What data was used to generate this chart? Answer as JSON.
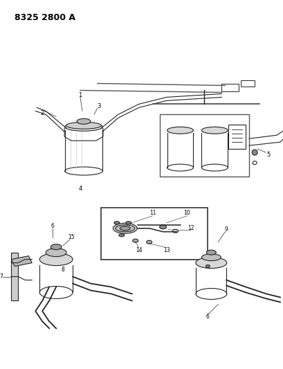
{
  "title": "8325 2800 A",
  "bg_color": "#ffffff",
  "line_color": "#222222",
  "title_fontsize": 9
}
